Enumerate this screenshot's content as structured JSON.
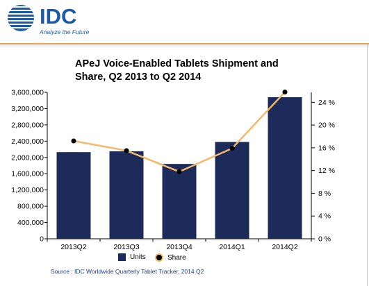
{
  "header": {
    "logo_text": "IDC",
    "tagline": "Analyze the Future"
  },
  "colors": {
    "bar": "#1c2b5a",
    "line": "#f5b768",
    "marker": "#000000",
    "brand": "#1a5aa8",
    "accent_rule": "#f3a347"
  },
  "chart_data": {
    "type": "bar",
    "title": "APeJ Voice-Enabled Tablets Shipment and Share, Q2 2013 to Q2 2014",
    "categories": [
      "2013Q2",
      "2013Q3",
      "2013Q4",
      "2014Q1",
      "2014Q2"
    ],
    "series": [
      {
        "name": "Units",
        "type": "bar",
        "axis": "left",
        "values": [
          2130000,
          2150000,
          1840000,
          2380000,
          3480000
        ]
      },
      {
        "name": "Share",
        "type": "line",
        "axis": "right",
        "values": [
          17.2,
          15.5,
          11.8,
          15.9,
          25.8
        ]
      }
    ],
    "y_left": {
      "ylim": [
        0,
        3600000
      ],
      "ticks": [
        0,
        400000,
        800000,
        1200000,
        1600000,
        2000000,
        2400000,
        2800000,
        3200000,
        3600000
      ],
      "tick_labels": [
        "0",
        "400,000",
        "800,000",
        "1,200,000",
        "1,600,000",
        "2,000,000",
        "2,400,000",
        "2,800,000",
        "3,200,000",
        "3,600,000"
      ]
    },
    "y_right": {
      "ylim": [
        0,
        25.75
      ],
      "ticks": [
        0,
        4,
        8,
        12,
        16,
        20,
        24
      ],
      "tick_labels": [
        "0 %",
        "4 %",
        "8 %",
        "12 %",
        "16 %",
        "20 %",
        "24 %"
      ]
    },
    "legend": [
      "Units",
      "Share"
    ],
    "legend_position": "bottom",
    "grid": false
  },
  "source": "Source : IDC Worldwide Quarterly Tablet Tracker, 2014 Q2"
}
